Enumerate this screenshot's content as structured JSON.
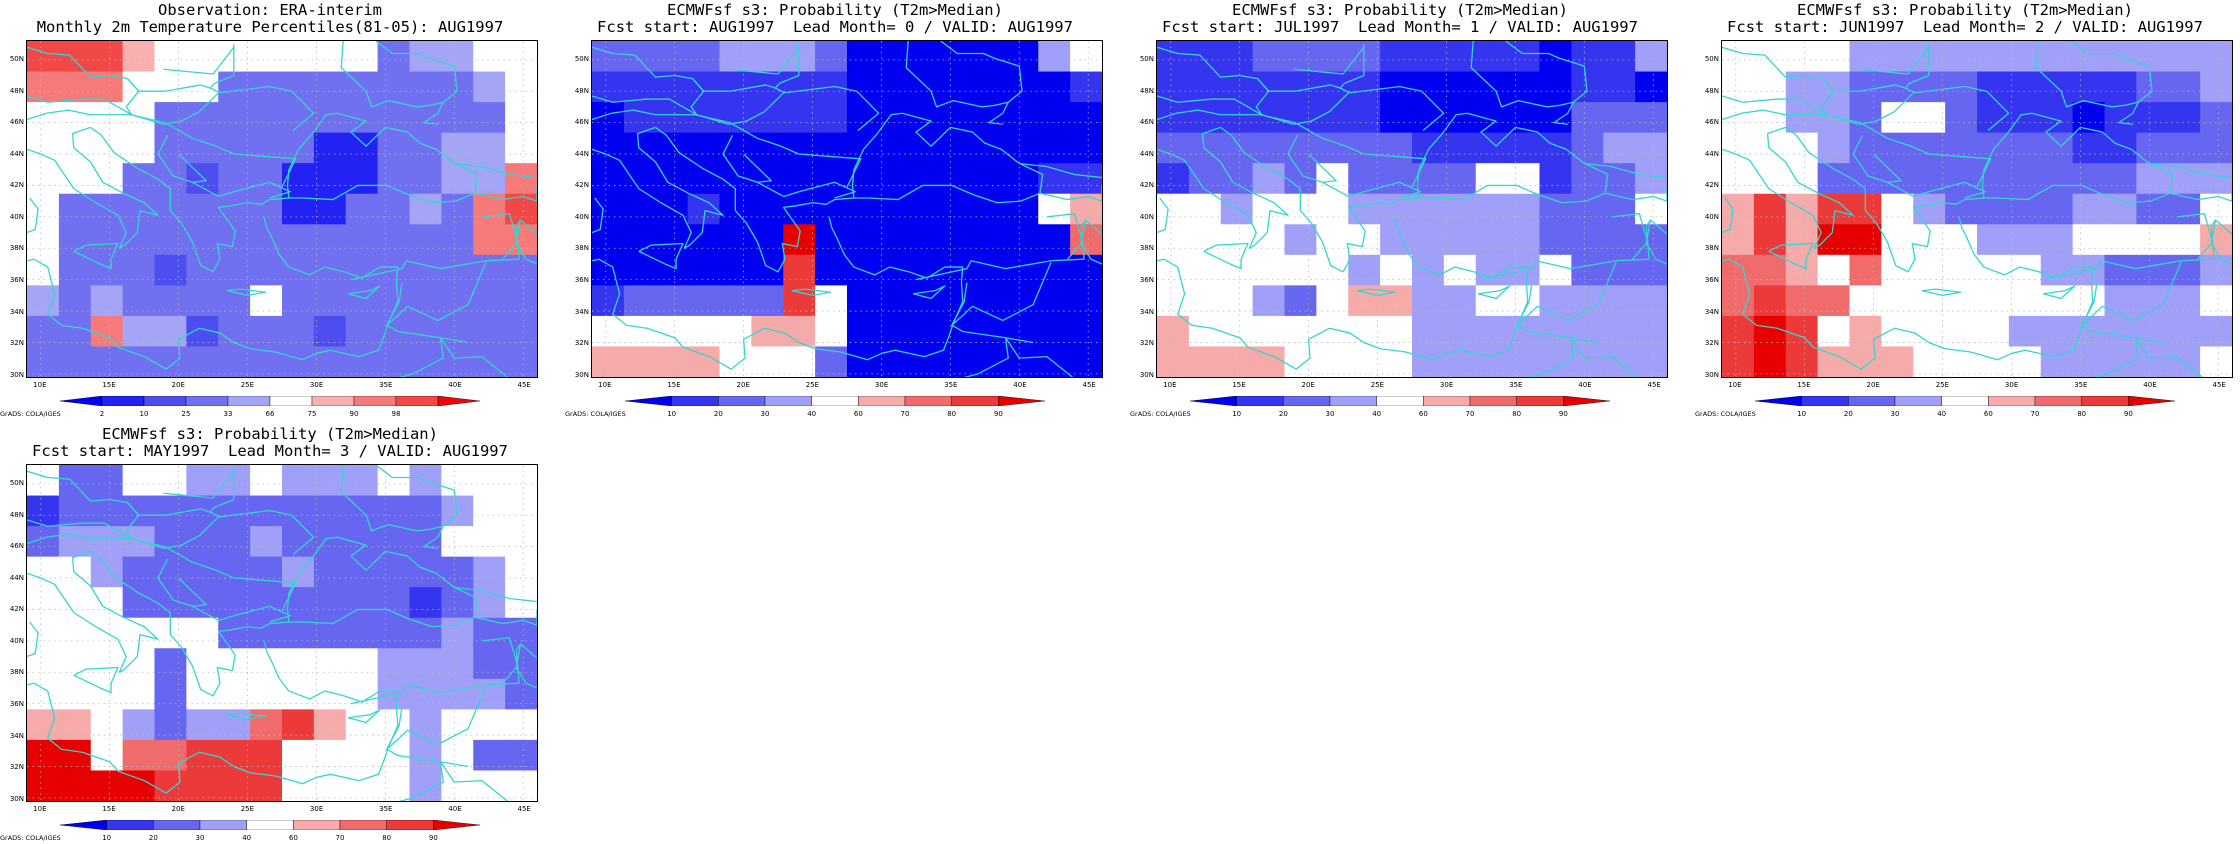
{
  "colors": {
    "coast": "#33d6d0",
    "grid": "#b8b8b8"
  },
  "palette_obs": [
    "#0000f5",
    "#2222f5",
    "#4d4df0",
    "#7070f0",
    "#a5a5f8",
    "#ffffff",
    "#f8b0b0",
    "#f77a7a",
    "#f24848",
    "#ec0808"
  ],
  "palette_prob": [
    "#0000f0",
    "#3535f0",
    "#6666f0",
    "#a0a0f8",
    "#ffffff",
    "#f6aaaa",
    "#f06c6c",
    "#ec3a3a",
    "#e60000"
  ],
  "lat_labels": [
    "50N",
    "48N",
    "46N",
    "44N",
    "42N",
    "40N",
    "38N",
    "36N",
    "34N",
    "32N",
    "30N"
  ],
  "lon_labels": [
    "10E",
    "15E",
    "20E",
    "25E",
    "30E",
    "35E",
    "40E",
    "45E"
  ],
  "panels": [
    {
      "title1": "Observation: ERA-interim",
      "title2": "Monthly 2m Temperature Percentiles(81-05): AUG1997",
      "colorbar_labels": [
        "2",
        "10",
        "25",
        "33",
        "66",
        "75",
        "90",
        "98"
      ],
      "credit": "GrADS: COLA/IGES",
      "palette": "obs",
      "grid": [
        [
          8,
          8,
          8,
          6,
          5,
          5,
          5,
          5,
          5,
          5,
          5,
          3,
          4,
          4,
          5,
          5
        ],
        [
          7,
          7,
          7,
          5,
          5,
          5,
          3,
          3,
          3,
          3,
          3,
          3,
          3,
          3,
          4,
          5
        ],
        [
          5,
          5,
          5,
          5,
          3,
          3,
          3,
          3,
          3,
          3,
          3,
          3,
          3,
          3,
          3,
          5
        ],
        [
          5,
          5,
          5,
          5,
          3,
          3,
          3,
          3,
          3,
          1,
          1,
          3,
          3,
          4,
          4,
          5
        ],
        [
          5,
          5,
          5,
          3,
          3,
          2,
          3,
          3,
          1,
          1,
          1,
          3,
          3,
          4,
          4,
          7
        ],
        [
          5,
          3,
          3,
          3,
          3,
          3,
          3,
          3,
          1,
          1,
          3,
          3,
          4,
          3,
          7,
          8
        ],
        [
          5,
          3,
          3,
          3,
          3,
          3,
          3,
          3,
          3,
          3,
          3,
          3,
          3,
          3,
          7,
          7
        ],
        [
          5,
          3,
          3,
          3,
          2,
          3,
          3,
          3,
          3,
          3,
          3,
          3,
          3,
          3,
          3,
          3
        ],
        [
          4,
          3,
          4,
          3,
          3,
          3,
          3,
          5,
          3,
          3,
          3,
          3,
          3,
          3,
          3,
          3
        ],
        [
          3,
          3,
          7,
          4,
          4,
          2,
          3,
          3,
          3,
          2,
          3,
          3,
          3,
          3,
          3,
          3
        ],
        [
          3,
          3,
          3,
          3,
          3,
          3,
          3,
          3,
          3,
          3,
          3,
          3,
          3,
          3,
          3,
          3
        ]
      ]
    },
    {
      "title1": "ECMWFsf s3: Probability (T2m>Median)",
      "title2": "Fcst start: AUG1997  Lead Month= 0 / VALID: AUG1997",
      "colorbar_labels": [
        "10",
        "20",
        "30",
        "40",
        "60",
        "70",
        "80",
        "90"
      ],
      "credit": "GrADS: COLA/IGES",
      "palette": "prob",
      "grid": [
        [
          2,
          2,
          2,
          2,
          3,
          3,
          3,
          2,
          0,
          0,
          0,
          0,
          0,
          0,
          3,
          4
        ],
        [
          1,
          1,
          1,
          1,
          1,
          1,
          1,
          1,
          0,
          0,
          0,
          0,
          0,
          0,
          0,
          1
        ],
        [
          0,
          1,
          1,
          1,
          1,
          1,
          1,
          1,
          0,
          0,
          0,
          0,
          0,
          0,
          0,
          0
        ],
        [
          0,
          0,
          0,
          0,
          0,
          0,
          0,
          0,
          0,
          0,
          0,
          0,
          0,
          0,
          0,
          0
        ],
        [
          0,
          0,
          0,
          0,
          0,
          0,
          0,
          0,
          0,
          0,
          0,
          0,
          0,
          0,
          1,
          1
        ],
        [
          0,
          0,
          0,
          1,
          0,
          0,
          0,
          0,
          0,
          0,
          0,
          0,
          0,
          0,
          4,
          5
        ],
        [
          0,
          0,
          0,
          0,
          0,
          0,
          8,
          0,
          0,
          0,
          0,
          0,
          0,
          0,
          0,
          6
        ],
        [
          0,
          0,
          0,
          0,
          0,
          0,
          7,
          0,
          0,
          0,
          0,
          0,
          0,
          0,
          0,
          0
        ],
        [
          1,
          2,
          2,
          2,
          2,
          2,
          7,
          4,
          0,
          0,
          0,
          0,
          0,
          0,
          0,
          0
        ],
        [
          4,
          4,
          4,
          4,
          4,
          5,
          5,
          4,
          0,
          0,
          0,
          0,
          0,
          0,
          0,
          0
        ],
        [
          5,
          5,
          5,
          5,
          4,
          4,
          4,
          2,
          0,
          0,
          0,
          0,
          0,
          0,
          0,
          0
        ]
      ]
    },
    {
      "title1": "ECMWFsf s3: Probability (T2m>Median)",
      "title2": "Fcst start: JUL1997  Lead Month= 1 / VALID: AUG1997",
      "colorbar_labels": [
        "10",
        "20",
        "30",
        "40",
        "60",
        "70",
        "80",
        "90"
      ],
      "credit": "GrADS: COLA/IGES",
      "palette": "prob",
      "grid": [
        [
          1,
          1,
          1,
          2,
          2,
          2,
          2,
          1,
          1,
          1,
          1,
          1,
          0,
          1,
          1,
          3
        ],
        [
          1,
          1,
          1,
          1,
          1,
          1,
          1,
          0,
          0,
          0,
          0,
          0,
          0,
          1,
          1,
          0
        ],
        [
          1,
          1,
          1,
          1,
          1,
          1,
          1,
          0,
          0,
          0,
          0,
          0,
          0,
          2,
          2,
          2
        ],
        [
          2,
          2,
          2,
          2,
          2,
          2,
          2,
          2,
          1,
          1,
          1,
          1,
          1,
          2,
          3,
          3
        ],
        [
          1,
          2,
          2,
          3,
          2,
          4,
          2,
          2,
          2,
          2,
          4,
          4,
          1,
          2,
          2,
          3
        ],
        [
          4,
          4,
          3,
          4,
          4,
          4,
          3,
          3,
          3,
          3,
          3,
          3,
          2,
          2,
          2,
          4
        ],
        [
          4,
          4,
          4,
          4,
          3,
          4,
          4,
          3,
          3,
          3,
          3,
          3,
          2,
          2,
          2,
          2
        ],
        [
          4,
          4,
          4,
          4,
          4,
          4,
          3,
          4,
          3,
          4,
          3,
          3,
          4,
          2,
          2,
          2
        ],
        [
          4,
          4,
          4,
          3,
          2,
          4,
          5,
          5,
          3,
          3,
          4,
          4,
          3,
          3,
          3,
          3
        ],
        [
          5,
          4,
          4,
          4,
          4,
          4,
          4,
          4,
          3,
          3,
          3,
          3,
          3,
          3,
          3,
          3
        ],
        [
          5,
          5,
          5,
          5,
          4,
          4,
          4,
          4,
          3,
          3,
          3,
          3,
          3,
          3,
          3,
          3
        ]
      ]
    },
    {
      "title1": "ECMWFsf s3: Probability (T2m>Median)",
      "title2": "Fcst start: JUN1997  Lead Month= 2 / VALID: AUG1997",
      "colorbar_labels": [
        "10",
        "20",
        "30",
        "40",
        "60",
        "70",
        "80",
        "90"
      ],
      "credit": "GrADS: COLA/IGES",
      "palette": "prob",
      "grid": [
        [
          4,
          4,
          4,
          4,
          3,
          3,
          3,
          3,
          3,
          3,
          3,
          3,
          3,
          3,
          3,
          3
        ],
        [
          4,
          4,
          3,
          3,
          2,
          2,
          2,
          2,
          1,
          1,
          1,
          1,
          1,
          2,
          2,
          3
        ],
        [
          4,
          4,
          3,
          3,
          2,
          4,
          4,
          2,
          1,
          1,
          1,
          0,
          1,
          1,
          1,
          2
        ],
        [
          4,
          4,
          4,
          3,
          2,
          2,
          2,
          2,
          2,
          2,
          2,
          1,
          1,
          2,
          2,
          2
        ],
        [
          4,
          4,
          4,
          2,
          2,
          2,
          2,
          2,
          2,
          2,
          2,
          2,
          2,
          3,
          3,
          3
        ],
        [
          5,
          7,
          5,
          7,
          7,
          4,
          3,
          2,
          2,
          2,
          2,
          3,
          3,
          2,
          2,
          4
        ],
        [
          5,
          7,
          5,
          8,
          8,
          4,
          4,
          4,
          3,
          3,
          3,
          4,
          4,
          4,
          4,
          5
        ],
        [
          6,
          6,
          5,
          4,
          6,
          4,
          4,
          4,
          4,
          4,
          3,
          3,
          2,
          2,
          2,
          3
        ],
        [
          6,
          7,
          6,
          6,
          4,
          4,
          4,
          4,
          4,
          4,
          4,
          4,
          3,
          3,
          3,
          4
        ],
        [
          7,
          8,
          7,
          4,
          5,
          4,
          4,
          4,
          4,
          3,
          3,
          3,
          3,
          3,
          3,
          3
        ],
        [
          7,
          8,
          7,
          5,
          5,
          5,
          4,
          4,
          4,
          4,
          3,
          3,
          3,
          3,
          3,
          4
        ]
      ]
    },
    {
      "title1": "ECMWFsf s3: Probability (T2m>Median)",
      "title2": "Fcst start: MAY1997  Lead Month= 3 / VALID: AUG1997",
      "colorbar_labels": [
        "10",
        "20",
        "30",
        "40",
        "60",
        "70",
        "80",
        "90"
      ],
      "credit": "GrADS: COLA/IGES",
      "palette": "prob",
      "grid": [
        [
          4,
          2,
          2,
          4,
          4,
          3,
          3,
          4,
          3,
          3,
          3,
          4,
          3,
          4,
          4,
          4
        ],
        [
          1,
          2,
          2,
          2,
          2,
          2,
          2,
          2,
          2,
          2,
          2,
          2,
          2,
          3,
          4,
          4
        ],
        [
          2,
          3,
          3,
          3,
          2,
          2,
          2,
          3,
          2,
          2,
          2,
          2,
          2,
          4,
          4,
          4
        ],
        [
          4,
          4,
          3,
          2,
          2,
          2,
          2,
          2,
          3,
          2,
          2,
          2,
          2,
          2,
          3,
          4
        ],
        [
          4,
          4,
          4,
          2,
          2,
          2,
          2,
          2,
          2,
          2,
          2,
          2,
          1,
          2,
          3,
          4
        ],
        [
          4,
          4,
          4,
          4,
          4,
          4,
          2,
          2,
          2,
          2,
          2,
          2,
          2,
          3,
          2,
          2
        ],
        [
          4,
          4,
          4,
          4,
          2,
          4,
          4,
          4,
          4,
          4,
          4,
          3,
          3,
          3,
          2,
          2
        ],
        [
          4,
          4,
          4,
          4,
          2,
          4,
          4,
          4,
          4,
          4,
          4,
          3,
          3,
          3,
          3,
          2
        ],
        [
          5,
          5,
          4,
          3,
          2,
          3,
          3,
          6,
          7,
          5,
          4,
          4,
          3,
          4,
          4,
          4
        ],
        [
          8,
          8,
          4,
          6,
          6,
          7,
          7,
          7,
          4,
          4,
          4,
          4,
          3,
          4,
          2,
          2
        ],
        [
          8,
          8,
          8,
          8,
          7,
          7,
          7,
          7,
          4,
          4,
          4,
          4,
          3,
          4,
          4,
          4
        ]
      ]
    }
  ]
}
